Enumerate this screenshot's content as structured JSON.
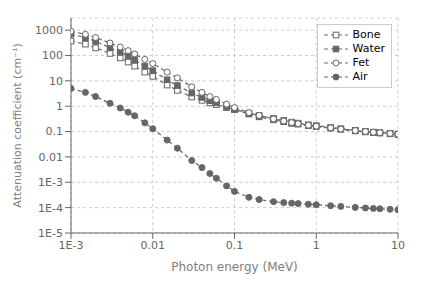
{
  "chart_data": {
    "type": "line",
    "title": "",
    "xlabel": "Photon energy (MeV)",
    "ylabel": "Attenuation coefficient (cm⁻¹)",
    "log": true,
    "grid": true,
    "legend": "upper right",
    "xlim": [
      0.001,
      10
    ],
    "ylim": [
      1e-05,
      3000
    ],
    "xticks": [
      {
        "value": 0.001,
        "label": "1E-3"
      },
      0.01,
      0.1,
      1,
      10
    ],
    "yticks": [
      {
        "value": 1e-05,
        "label": "1E-5"
      },
      {
        "value": 0.0001,
        "label": "1E-4"
      },
      {
        "value": 0.001,
        "label": "1E-3"
      },
      0.01,
      0.1,
      1,
      10,
      100,
      1000
    ],
    "x": [
      0.001,
      0.0015,
      0.002,
      0.003,
      0.004,
      0.005,
      0.006,
      0.008,
      0.01,
      0.015,
      0.02,
      0.03,
      0.04,
      0.05,
      0.06,
      0.08,
      0.1,
      0.15,
      0.2,
      0.3,
      0.4,
      0.5,
      0.6,
      0.8,
      1.0,
      1.5,
      2.0,
      3.0,
      4.0,
      5.0,
      6.0,
      8.0,
      10.0
    ],
    "series": [
      {
        "name": "Bone",
        "color": "#666666",
        "marker": "square_open",
        "line_style": "dashed",
        "values": [
          370,
          280,
          200,
          120,
          80,
          55,
          38,
          22,
          15,
          6.8,
          4.2,
          2.3,
          1.7,
          1.35,
          1.15,
          0.88,
          0.74,
          0.53,
          0.43,
          0.33,
          0.275,
          0.235,
          0.215,
          0.185,
          0.17,
          0.145,
          0.13,
          0.112,
          0.102,
          0.095,
          0.091,
          0.085,
          0.08
        ]
      },
      {
        "name": "Water",
        "color": "#666666",
        "marker": "square",
        "line_style": "dashed",
        "values": [
          700,
          500,
          360,
          200,
          135,
          95,
          68,
          38,
          25,
          11,
          6.5,
          3.3,
          2.2,
          1.65,
          1.35,
          0.94,
          0.73,
          0.49,
          0.38,
          0.29,
          0.245,
          0.21,
          0.195,
          0.17,
          0.157,
          0.135,
          0.122,
          0.106,
          0.097,
          0.091,
          0.087,
          0.081,
          0.077
        ]
      },
      {
        "name": "Fet",
        "color": "#666666",
        "marker": "circle_open",
        "line_style": "dashed",
        "values": [
          900,
          680,
          510,
          310,
          215,
          155,
          115,
          70,
          48,
          22,
          13,
          5.8,
          3.5,
          2.4,
          1.85,
          1.2,
          0.88,
          0.56,
          0.43,
          0.315,
          0.26,
          0.225,
          0.205,
          0.178,
          0.163,
          0.14,
          0.126,
          0.109,
          0.1,
          0.094,
          0.09,
          0.084,
          0.079
        ]
      },
      {
        "name": "Air",
        "color": "#666666",
        "marker": "circle",
        "line_style": "dashed",
        "values": [
          5.0,
          3.5,
          2.4,
          1.3,
          0.85,
          0.58,
          0.42,
          0.22,
          0.13,
          0.046,
          0.022,
          0.0072,
          0.0038,
          0.0022,
          0.00145,
          0.00072,
          0.000435,
          0.000255,
          0.000208,
          0.000172,
          0.000158,
          0.00015,
          0.000144,
          0.000136,
          0.00013,
          0.000119,
          0.000112,
          0.000102,
          9.68e-05,
          9.3e-05,
          9.02e-05,
          8.59e-05,
          8.26e-05
        ]
      }
    ]
  }
}
